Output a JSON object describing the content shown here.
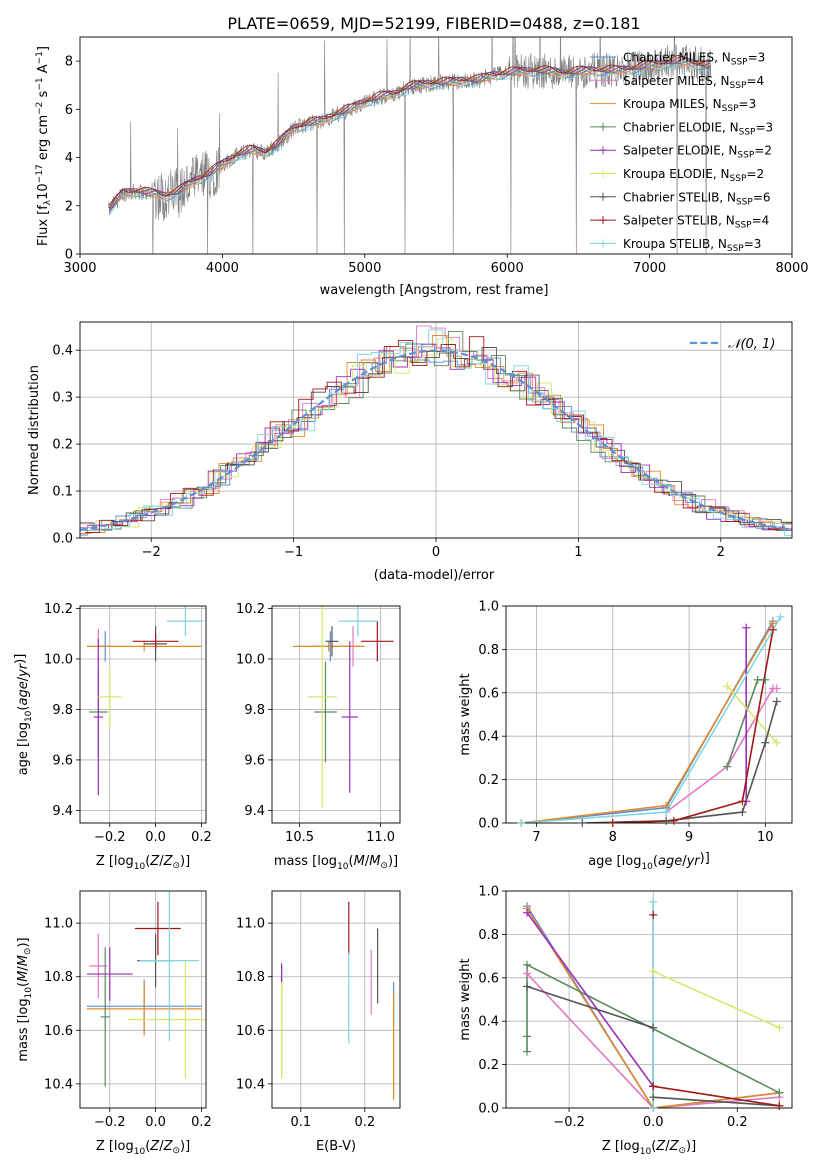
{
  "title": "PLATE=0659, MJD=52199, FIBERID=0488, z=0.181",
  "palette": {
    "chabrier_miles": "#5b8fd6",
    "salpeter_miles": "#e377c2",
    "kroupa_miles": "#e08a2e",
    "chabrier_elodie": "#5a8a5e",
    "salpeter_elodie": "#9b30b8",
    "kroupa_elodie": "#d4e86a",
    "chabrier_stelib": "#555555",
    "salpeter_stelib": "#a01818",
    "kroupa_stelib": "#7fd6e0",
    "data_spectrum": "#808080",
    "normal_curve": "#5b8fd6"
  },
  "legend_spectrum": [
    {
      "text": "Chabrier MILES, N",
      "sub": "SSP",
      "tail": "=3",
      "color_key": "chabrier_miles"
    },
    {
      "text": "Salpeter MILES, N",
      "sub": "SSP",
      "tail": "=4",
      "color_key": "salpeter_miles"
    },
    {
      "text": "Kroupa MILES, N",
      "sub": "SSP",
      "tail": "=3",
      "color_key": "kroupa_miles"
    },
    {
      "text": "Chabrier ELODIE, N",
      "sub": "SSP",
      "tail": "=3",
      "color_key": "chabrier_elodie"
    },
    {
      "text": "Salpeter ELODIE, N",
      "sub": "SSP",
      "tail": "=2",
      "color_key": "salpeter_elodie"
    },
    {
      "text": "Kroupa ELODIE, N",
      "sub": "SSP",
      "tail": "=2",
      "color_key": "kroupa_elodie"
    },
    {
      "text": "Chabrier STELIB, N",
      "sub": "SSP",
      "tail": "=6",
      "color_key": "chabrier_stelib"
    },
    {
      "text": "Salpeter STELIB, N",
      "sub": "SSP",
      "tail": "=4",
      "color_key": "salpeter_stelib"
    },
    {
      "text": "Kroupa STELIB, N",
      "sub": "SSP",
      "tail": "=3",
      "color_key": "kroupa_stelib"
    }
  ],
  "chart_data": [
    {
      "id": "spectrum",
      "type": "line",
      "xlabel": "wavelength [Angstrom, rest frame]",
      "ylabel": "Flux [f_λ 10^-17 erg cm^-2 s^-1 A^-1]",
      "xlim": [
        3000,
        8000
      ],
      "ylim": [
        0,
        9
      ],
      "xticks": [
        3000,
        4000,
        5000,
        6000,
        7000,
        8000
      ],
      "yticks": [
        0,
        2,
        4,
        6,
        8
      ],
      "model_continuum": {
        "x": [
          3200,
          3300,
          3400,
          3500,
          3600,
          3700,
          3800,
          3900,
          4000,
          4100,
          4200,
          4300,
          4400,
          4500,
          4600,
          4700,
          4800,
          4900,
          5000,
          5100,
          5200,
          5300,
          5400,
          5500,
          5600,
          5700,
          5800,
          5900,
          6000,
          6200,
          6400,
          6600,
          6800,
          7000,
          7200,
          7400
        ],
        "y": [
          1.8,
          2.5,
          2.6,
          2.5,
          2.4,
          2.6,
          3.0,
          3.3,
          3.7,
          4.1,
          4.3,
          4.2,
          4.6,
          5.2,
          5.4,
          5.5,
          5.8,
          6.0,
          6.3,
          6.5,
          6.6,
          6.9,
          7.0,
          7.1,
          7.1,
          7.2,
          7.2,
          7.4,
          7.5,
          7.6,
          7.5,
          7.6,
          7.6,
          7.8,
          8.0,
          7.8
        ]
      }
    },
    {
      "id": "residuals",
      "type": "histogram",
      "xlabel": "(data-model)/error",
      "ylabel": "Normed distribution",
      "xlim": [
        -2.5,
        2.5
      ],
      "ylim": [
        0,
        0.46
      ],
      "xticks": [
        -2,
        -1,
        0,
        1,
        2
      ],
      "yticks": [
        0.0,
        0.1,
        0.2,
        0.3,
        0.4
      ],
      "legend": "𝒩(0, 1)",
      "bin_edges_start": -2.5,
      "bin_width": 0.1
    },
    {
      "id": "age_vs_z",
      "type": "scatter",
      "xlabel": "Z [log10(Z/Z⊙)]",
      "ylabel": "age  [log10(age/yr)]",
      "xlim": [
        -0.33,
        0.22
      ],
      "ylim": [
        9.35,
        10.21
      ],
      "xticks": [
        -0.2,
        0.0,
        0.2
      ],
      "yticks": [
        9.4,
        9.6,
        9.8,
        10.0,
        10.2
      ],
      "points": [
        {
          "series": "chabrier_miles",
          "x": -0.22,
          "y": 10.05,
          "xerr": 0.02,
          "yerr": 0.06
        },
        {
          "series": "salpeter_miles",
          "x": -0.25,
          "y": 10.05,
          "xerr": 0.03,
          "yerr": 0.07
        },
        {
          "series": "kroupa_miles",
          "x": -0.05,
          "y": 10.05,
          "xerr": 0.25,
          "yerr": 0.02
        },
        {
          "series": "chabrier_elodie",
          "x": -0.25,
          "y": 9.79,
          "xerr": 0.04,
          "yerr": 0.18
        },
        {
          "series": "salpeter_elodie",
          "x": -0.25,
          "y": 9.77,
          "xerr": 0.02,
          "yerr": 0.31
        },
        {
          "series": "kroupa_elodie",
          "x": -0.2,
          "y": 9.85,
          "xerr": 0.05,
          "yerr": 0.12
        },
        {
          "series": "chabrier_stelib",
          "x": 0.0,
          "y": 10.06,
          "xerr": 0.05,
          "yerr": 0.07
        },
        {
          "series": "salpeter_stelib",
          "x": 0.0,
          "y": 10.07,
          "xerr": 0.1,
          "yerr": 0.03
        },
        {
          "series": "kroupa_stelib",
          "x": 0.13,
          "y": 10.15,
          "xerr": 0.08,
          "yerr": 0.06
        }
      ]
    },
    {
      "id": "age_vs_mass",
      "type": "scatter",
      "xlabel": "mass [log10(M/M⊙)]",
      "ylabel": "",
      "xlim": [
        10.33,
        11.12
      ],
      "ylim": [
        9.35,
        10.21
      ],
      "xticks": [
        10.5,
        11.0
      ],
      "yticks": [
        9.4,
        9.6,
        9.8,
        10.0,
        10.2
      ],
      "points": [
        {
          "series": "chabrier_miles",
          "x": 10.69,
          "y": 10.05,
          "xerr": 0.12,
          "yerr": 0.06
        },
        {
          "series": "salpeter_miles",
          "x": 10.83,
          "y": 10.05,
          "xerr": 0.04,
          "yerr": 0.08
        },
        {
          "series": "kroupa_miles",
          "x": 10.68,
          "y": 10.05,
          "xerr": 0.22,
          "yerr": 0.02
        },
        {
          "series": "chabrier_elodie",
          "x": 10.66,
          "y": 9.79,
          "xerr": 0.07,
          "yerr": 0.2
        },
        {
          "series": "salpeter_elodie",
          "x": 10.81,
          "y": 9.77,
          "xerr": 0.05,
          "yerr": 0.3
        },
        {
          "series": "kroupa_elodie",
          "x": 10.64,
          "y": 9.85,
          "xerr": 0.09,
          "yerr": 0.44
        },
        {
          "series": "chabrier_stelib",
          "x": 10.7,
          "y": 10.07,
          "xerr": 0.04,
          "yerr": 0.06
        },
        {
          "series": "salpeter_stelib",
          "x": 10.98,
          "y": 10.07,
          "xerr": 0.1,
          "yerr": 0.08
        },
        {
          "series": "kroupa_stelib",
          "x": 10.86,
          "y": 10.15,
          "xerr": 0.12,
          "yerr": 0.06
        }
      ]
    },
    {
      "id": "massweight_vs_age",
      "type": "line",
      "xlabel": "age  [log10(age/yr)]",
      "ylabel": "mass weight",
      "xlim": [
        6.6,
        10.35
      ],
      "ylim": [
        0.0,
        1.0
      ],
      "xticks": [
        7,
        8,
        9,
        10
      ],
      "yticks": [
        0.0,
        0.2,
        0.4,
        0.6,
        0.8,
        1.0
      ],
      "series": [
        {
          "series": "chabrier_miles",
          "x": [
            6.8,
            8.7,
            10.1
          ],
          "y": [
            0.0,
            0.07,
            0.93
          ]
        },
        {
          "series": "salpeter_miles",
          "x": [
            8.7,
            9.5,
            10.1,
            10.15
          ],
          "y": [
            0.05,
            0.26,
            0.62,
            0.62
          ]
        },
        {
          "series": "kroupa_miles",
          "x": [
            6.8,
            8.7,
            10.1
          ],
          "y": [
            0.0,
            0.08,
            0.92
          ]
        },
        {
          "series": "chabrier_elodie",
          "x": [
            9.5,
            9.9,
            10.0
          ],
          "y": [
            0.26,
            0.66,
            0.66
          ]
        },
        {
          "series": "salpeter_elodie",
          "x": [
            9.75,
            9.75
          ],
          "y": [
            0.9,
            0.1
          ]
        },
        {
          "series": "kroupa_elodie",
          "x": [
            9.5,
            10.15
          ],
          "y": [
            0.63,
            0.37
          ]
        },
        {
          "series": "chabrier_stelib",
          "x": [
            7.6,
            8.7,
            9.7,
            10.0,
            10.15
          ],
          "y": [
            0.0,
            0.01,
            0.05,
            0.37,
            0.56
          ]
        },
        {
          "series": "salpeter_stelib",
          "x": [
            8.0,
            8.8,
            9.7,
            10.1
          ],
          "y": [
            0.0,
            0.01,
            0.1,
            0.89
          ]
        },
        {
          "series": "kroupa_stelib",
          "x": [
            6.8,
            8.7,
            10.2
          ],
          "y": [
            0.0,
            0.05,
            0.95
          ]
        }
      ]
    },
    {
      "id": "mass_vs_z",
      "type": "scatter",
      "xlabel": "Z [log10(Z/Z⊙)]",
      "ylabel": "mass [log10(M/M⊙)]",
      "xlim": [
        -0.33,
        0.22
      ],
      "ylim": [
        10.31,
        11.12
      ],
      "xticks": [
        -0.2,
        0.0,
        0.2
      ],
      "yticks": [
        10.4,
        10.6,
        10.8,
        11.0
      ],
      "points": [
        {
          "series": "chabrier_miles",
          "x": -0.05,
          "y": 10.69,
          "xerr": 0.25,
          "yerr": 0.1
        },
        {
          "series": "salpeter_miles",
          "x": -0.25,
          "y": 10.84,
          "xerr": 0.04,
          "yerr": 0.12
        },
        {
          "series": "kroupa_miles",
          "x": -0.05,
          "y": 10.68,
          "xerr": 0.25,
          "yerr": 0.1
        },
        {
          "series": "chabrier_elodie",
          "x": -0.22,
          "y": 10.65,
          "xerr": 0.02,
          "yerr": 0.26
        },
        {
          "series": "salpeter_elodie",
          "x": -0.2,
          "y": 10.81,
          "xerr": 0.1,
          "yerr": 0.1
        },
        {
          "series": "kroupa_elodie",
          "x": 0.13,
          "y": 10.64,
          "xerr": 0.25,
          "yerr": 0.22
        },
        {
          "series": "chabrier_stelib",
          "x": 0.0,
          "y": 10.86,
          "xerr": 0.08,
          "yerr": 0.1
        },
        {
          "series": "salpeter_stelib",
          "x": 0.01,
          "y": 10.98,
          "xerr": 0.1,
          "yerr": 0.1
        },
        {
          "series": "kroupa_stelib",
          "x": 0.06,
          "y": 10.86,
          "xerr": 0.13,
          "yerr": 0.3
        }
      ]
    },
    {
      "id": "mass_vs_ebv",
      "type": "scatter",
      "xlabel": "E(B-V)",
      "ylabel": "",
      "xlim": [
        0.055,
        0.255
      ],
      "ylim": [
        10.31,
        11.12
      ],
      "xticks": [
        0.1,
        0.2
      ],
      "yticks": [
        10.4,
        10.6,
        10.8,
        11.0
      ],
      "points": [
        {
          "series": "chabrier_miles",
          "x": 0.245,
          "y": 10.7,
          "xerr": 0.0,
          "yerr": 0.08
        },
        {
          "series": "salpeter_miles",
          "x": 0.21,
          "y": 10.78,
          "xerr": 0.0,
          "yerr": 0.12
        },
        {
          "series": "kroupa_miles",
          "x": 0.245,
          "y": 10.54,
          "xerr": 0.0,
          "yerr": 0.2
        },
        {
          "series": "chabrier_elodie",
          "x": 0.07,
          "y": 10.64,
          "xerr": 0.0,
          "yerr": 0.2
        },
        {
          "series": "salpeter_elodie",
          "x": 0.07,
          "y": 10.81,
          "xerr": 0.0,
          "yerr": 0.04
        },
        {
          "series": "kroupa_elodie",
          "x": 0.07,
          "y": 10.6,
          "xerr": 0.0,
          "yerr": 0.18
        },
        {
          "series": "chabrier_stelib",
          "x": 0.22,
          "y": 10.84,
          "xerr": 0.0,
          "yerr": 0.14
        },
        {
          "series": "salpeter_stelib",
          "x": 0.175,
          "y": 10.98,
          "xerr": 0.0,
          "yerr": 0.1
        },
        {
          "series": "kroupa_stelib",
          "x": 0.175,
          "y": 10.72,
          "xerr": 0.0,
          "yerr": 0.17
        }
      ]
    },
    {
      "id": "massweight_vs_z",
      "type": "line",
      "xlabel": "Z [log10(Z/Z⊙)]",
      "ylabel": "mass weight",
      "xlim": [
        -0.35,
        0.33
      ],
      "ylim": [
        0.0,
        1.0
      ],
      "xticks": [
        -0.2,
        0.0,
        0.2
      ],
      "yticks": [
        0.0,
        0.2,
        0.4,
        0.6,
        0.8,
        1.0
      ],
      "series": [
        {
          "series": "chabrier_miles",
          "x": [
            -0.3,
            0.0,
            0.3
          ],
          "y": [
            0.93,
            0.0,
            0.07
          ]
        },
        {
          "series": "salpeter_miles",
          "x": [
            -0.3,
            0.0,
            0.3
          ],
          "y": [
            0.62,
            0.0,
            0.05
          ]
        },
        {
          "series": "kroupa_miles",
          "x": [
            -0.3,
            0.0,
            0.3
          ],
          "y": [
            0.92,
            0.0,
            0.07
          ]
        },
        {
          "series": "chabrier_elodie",
          "x": [
            -0.3,
            -0.3,
            -0.3,
            0.3
          ],
          "y": [
            0.26,
            0.33,
            0.66,
            0.07
          ]
        },
        {
          "series": "salpeter_elodie",
          "x": [
            -0.3,
            0.0
          ],
          "y": [
            0.9,
            0.1
          ]
        },
        {
          "series": "kroupa_elodie",
          "x": [
            0.0,
            0.3
          ],
          "y": [
            0.63,
            0.37
          ]
        },
        {
          "series": "chabrier_stelib",
          "x": [
            -0.3,
            0.0,
            0.0,
            0.3
          ],
          "y": [
            0.56,
            0.37,
            0.05,
            0.01
          ]
        },
        {
          "series": "salpeter_stelib",
          "x": [
            0.0,
            0.0,
            0.3
          ],
          "y": [
            0.89,
            0.1,
            0.01
          ]
        },
        {
          "series": "kroupa_stelib",
          "x": [
            0.0,
            0.0
          ],
          "y": [
            0.95,
            0.0
          ]
        }
      ]
    }
  ]
}
